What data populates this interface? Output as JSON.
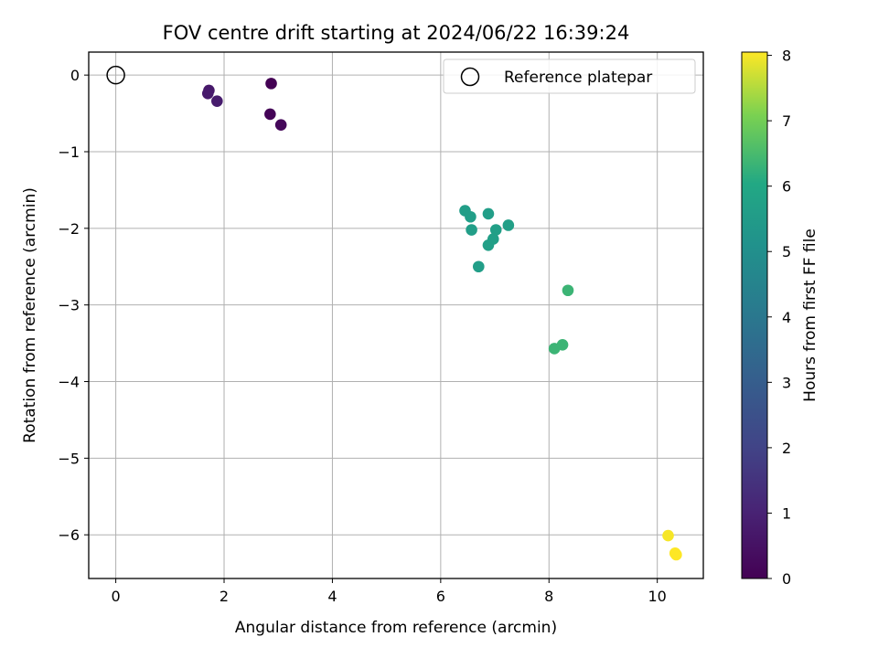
{
  "chart_data": {
    "type": "scatter",
    "title": "FOV centre drift starting at 2024/06/22 16:39:24",
    "xlabel": "Angular distance from reference (arcmin)",
    "ylabel": "Rotation from reference (arcmin)",
    "xlim": [
      -0.5,
      10.85
    ],
    "ylim": [
      -6.57,
      0.3
    ],
    "xticks": [
      0,
      2,
      4,
      6,
      8,
      10
    ],
    "yticks": [
      0,
      -1,
      -2,
      -3,
      -4,
      -5,
      -6
    ],
    "grid": true,
    "legend": {
      "position": "top-right",
      "entries": [
        "Reference platepar"
      ]
    },
    "reference_point": {
      "label": "Reference platepar",
      "x": 0,
      "y": 0
    },
    "colorbar": {
      "label": "Hours from first FF file",
      "range": [
        0,
        8.05
      ],
      "ticks": [
        0,
        1,
        2,
        3,
        4,
        5,
        6,
        7,
        8
      ],
      "colormap": "viridis"
    },
    "points": [
      {
        "x": 2.87,
        "y": -0.11,
        "hours": 0.0
      },
      {
        "x": 2.85,
        "y": -0.51,
        "hours": 0.1
      },
      {
        "x": 3.05,
        "y": -0.65,
        "hours": 0.2
      },
      {
        "x": 1.72,
        "y": -0.2,
        "hours": 0.7
      },
      {
        "x": 1.7,
        "y": -0.24,
        "hours": 0.75
      },
      {
        "x": 1.87,
        "y": -0.34,
        "hours": 0.8
      },
      {
        "x": 6.45,
        "y": -1.77,
        "hours": 5.6
      },
      {
        "x": 6.55,
        "y": -1.85,
        "hours": 5.6
      },
      {
        "x": 6.88,
        "y": -1.81,
        "hours": 5.6
      },
      {
        "x": 7.25,
        "y": -1.96,
        "hours": 5.65
      },
      {
        "x": 7.02,
        "y": -2.02,
        "hours": 5.65
      },
      {
        "x": 6.57,
        "y": -2.02,
        "hours": 5.6
      },
      {
        "x": 6.97,
        "y": -2.14,
        "hours": 5.65
      },
      {
        "x": 6.88,
        "y": -2.22,
        "hours": 5.65
      },
      {
        "x": 6.7,
        "y": -2.5,
        "hours": 5.6
      },
      {
        "x": 8.35,
        "y": -2.81,
        "hours": 6.35
      },
      {
        "x": 8.25,
        "y": -3.52,
        "hours": 6.35
      },
      {
        "x": 8.1,
        "y": -3.57,
        "hours": 6.35
      },
      {
        "x": 10.2,
        "y": -6.01,
        "hours": 8.0
      },
      {
        "x": 10.33,
        "y": -6.24,
        "hours": 8.05
      },
      {
        "x": 10.35,
        "y": -6.26,
        "hours": 8.05
      }
    ]
  }
}
